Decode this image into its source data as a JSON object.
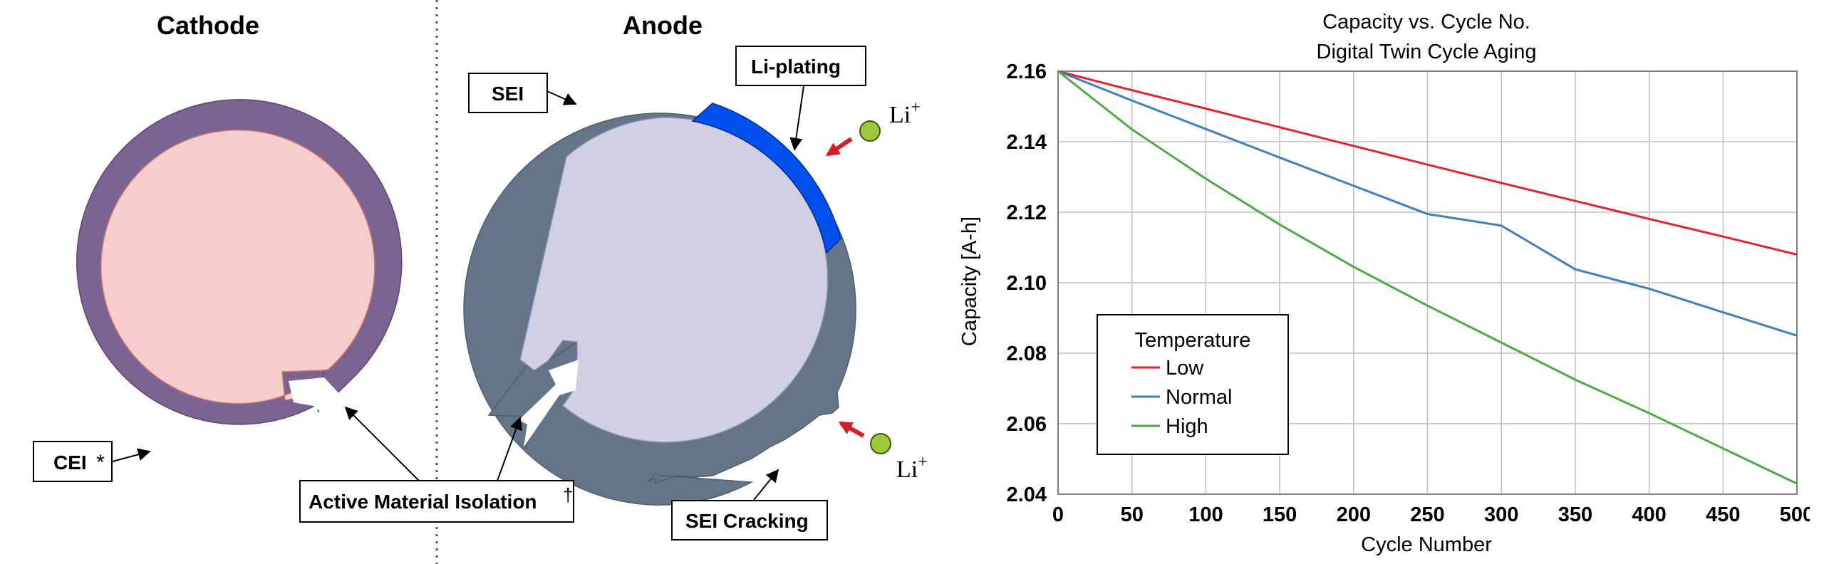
{
  "diagram": {
    "cathode_title": "Cathode",
    "anode_title": "Anode",
    "labels": {
      "cei": "CEI",
      "cei_mark": "*",
      "active_material_isolation": "Active Material Isolation",
      "ami_mark": "†",
      "sei": "SEI",
      "li_plating": "Li-plating",
      "sei_cracking": "SEI Cracking",
      "li_ion_top": "Li",
      "li_ion_bottom": "Li",
      "li_charge": "+"
    },
    "colors": {
      "cathode_shell": "#7b6491",
      "cathode_core": "#f7cccc",
      "anode_shell": "#637587",
      "anode_core": "#d0cfe4",
      "li_plating": "#0050ee",
      "li_ion": "#9dc93a",
      "li_arrow": "#d0202a"
    }
  },
  "chart_data": {
    "type": "line",
    "title": "Capacity vs. Cycle No.",
    "subtitle": "Digital Twin Cycle Aging",
    "xlabel": "Cycle Number",
    "ylabel": "Capacity [A-h]",
    "xlim": [
      0,
      500
    ],
    "ylim": [
      2.04,
      2.16
    ],
    "xticks": [
      0,
      50,
      100,
      150,
      200,
      250,
      300,
      350,
      400,
      450,
      500
    ],
    "yticks": [
      2.04,
      2.06,
      2.08,
      2.1,
      2.12,
      2.14,
      2.16
    ],
    "xtick_labels": [
      "0",
      "50",
      "100",
      "150",
      "200",
      "250",
      "300",
      "350",
      "400",
      "450",
      "500"
    ],
    "ytick_labels": [
      "2.04",
      "2.06",
      "2.08",
      "2.10",
      "2.12",
      "2.14",
      "2.16"
    ],
    "grid": true,
    "legend_title": "Temperature",
    "legend_position": "bottom-left",
    "x": [
      0,
      50,
      100,
      150,
      200,
      250,
      300,
      350,
      400,
      450,
      500
    ],
    "series": [
      {
        "name": "Low",
        "color": "#e0252b",
        "values": [
          2.16,
          2.1546,
          2.1494,
          2.1441,
          2.1388,
          2.1335,
          2.1283,
          2.1232,
          2.1181,
          2.1131,
          2.108
        ]
      },
      {
        "name": "Normal",
        "color": "#3f7fbf",
        "values": [
          2.16,
          2.1517,
          2.1436,
          2.1355,
          2.1275,
          2.1195,
          2.1162,
          2.1038,
          2.0983,
          2.0916,
          2.085
        ]
      },
      {
        "name": "High",
        "color": "#4aad3f",
        "values": [
          2.16,
          2.1435,
          2.1295,
          2.1165,
          2.1045,
          2.0935,
          2.083,
          2.0725,
          2.063,
          2.053,
          2.043
        ]
      }
    ]
  }
}
